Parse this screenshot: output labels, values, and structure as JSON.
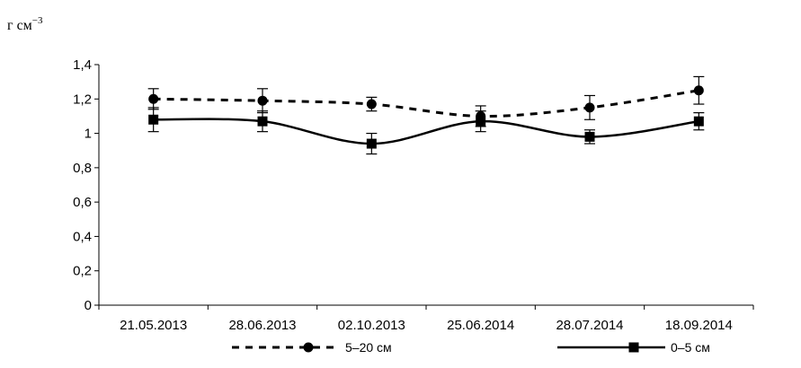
{
  "chart_data": {
    "type": "line",
    "y_unit_label": "г см",
    "y_unit_exponent": "−3",
    "categories": [
      "21.05.2013",
      "28.06.2013",
      "02.10.2013",
      "25.06.2014",
      "28.07.2014",
      "18.09.2014"
    ],
    "ylim": [
      0,
      1.4
    ],
    "yticks": [
      0,
      0.2,
      0.4,
      0.6,
      0.8,
      1,
      1.2,
      1.4
    ],
    "ytick_labels": [
      "0",
      "0,2",
      "0,4",
      "0,6",
      "0,8",
      "1",
      "1,2",
      "1,4"
    ],
    "grid": false,
    "legend_position": "bottom",
    "series": [
      {
        "name": "5–20 см",
        "values": [
          1.2,
          1.19,
          1.17,
          1.1,
          1.15,
          1.25
        ],
        "errors": [
          0.06,
          0.07,
          0.04,
          0.06,
          0.07,
          0.08
        ],
        "marker": "circle",
        "line_style": "dashed",
        "color": "#000000"
      },
      {
        "name": "0–5 см",
        "values": [
          1.08,
          1.07,
          0.94,
          1.07,
          0.98,
          1.07
        ],
        "errors": [
          0.07,
          0.06,
          0.06,
          0.06,
          0.04,
          0.05
        ],
        "marker": "square",
        "line_style": "solid",
        "color": "#000000"
      }
    ]
  }
}
